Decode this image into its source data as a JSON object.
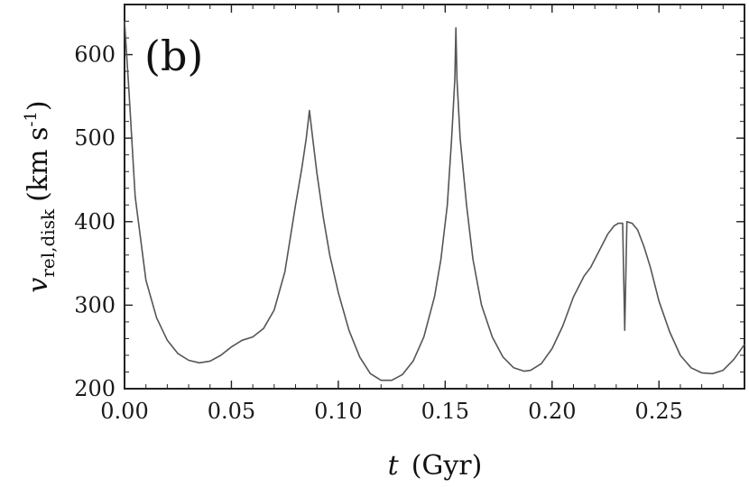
{
  "chart_data": {
    "type": "line",
    "panel_label": "(b)",
    "xlabel": {
      "var": "t",
      "unit": "(Gyr)"
    },
    "ylabel": {
      "var": "v",
      "sub": "rel,disk",
      "unit_pre": "(km s",
      "unit_sup": "-1",
      "unit_post": ")"
    },
    "xlim": [
      0.0,
      0.29
    ],
    "ylim": [
      200,
      660
    ],
    "xticks": [
      "0.00",
      "0.05",
      "0.10",
      "0.15",
      "0.20",
      "0.25"
    ],
    "yticks": [
      "200",
      "300",
      "400",
      "500",
      "600"
    ],
    "grid": false,
    "series": [
      {
        "color": "#555555",
        "x": [
          0.0,
          0.002,
          0.005,
          0.01,
          0.015,
          0.02,
          0.025,
          0.03,
          0.035,
          0.04,
          0.045,
          0.05,
          0.055,
          0.06,
          0.065,
          0.07,
          0.075,
          0.08,
          0.083,
          0.085,
          0.0865,
          0.088,
          0.09,
          0.093,
          0.096,
          0.1,
          0.105,
          0.11,
          0.115,
          0.12,
          0.125,
          0.13,
          0.135,
          0.14,
          0.145,
          0.148,
          0.151,
          0.153,
          0.1545,
          0.155,
          0.1555,
          0.157,
          0.16,
          0.163,
          0.167,
          0.172,
          0.177,
          0.182,
          0.187,
          0.19,
          0.195,
          0.2,
          0.205,
          0.21,
          0.215,
          0.218,
          0.222,
          0.226,
          0.229,
          0.231,
          0.233,
          0.234,
          0.235,
          0.2375,
          0.24,
          0.243,
          0.246,
          0.25,
          0.255,
          0.26,
          0.265,
          0.27,
          0.275,
          0.28,
          0.285,
          0.29
        ],
        "y": [
          640,
          560,
          430,
          330,
          285,
          258,
          242,
          234,
          231,
          233,
          240,
          250,
          258,
          262,
          272,
          294,
          340,
          420,
          465,
          500,
          533,
          500,
          458,
          405,
          360,
          315,
          270,
          238,
          218,
          210,
          210,
          217,
          233,
          262,
          310,
          355,
          420,
          500,
          570,
          632,
          570,
          500,
          420,
          355,
          300,
          262,
          238,
          225,
          221,
          222,
          230,
          248,
          275,
          310,
          335,
          345,
          365,
          385,
          395,
          398,
          398,
          270,
          400,
          398,
          390,
          370,
          345,
          305,
          268,
          240,
          225,
          219,
          218,
          222,
          235,
          253
        ]
      }
    ]
  }
}
